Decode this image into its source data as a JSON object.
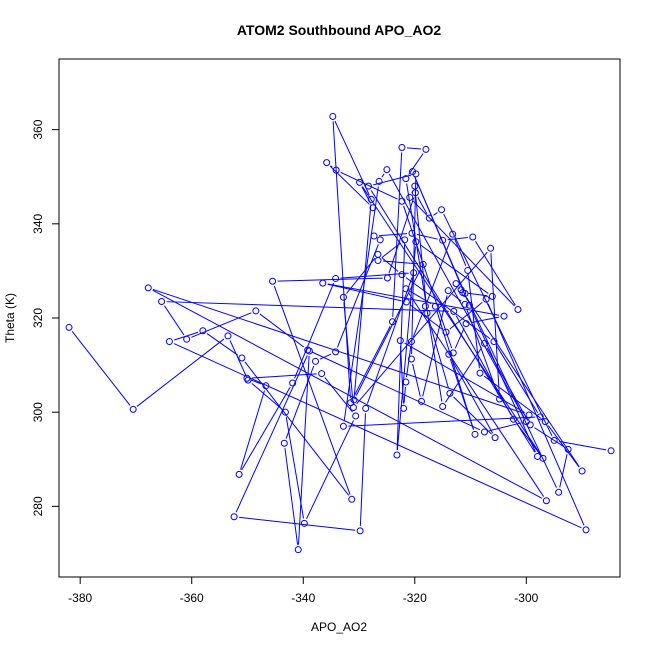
{
  "chart_data": {
    "type": "scatter",
    "title": "ATOM2 Southbound APO_AO2",
    "xlabel": "APO_AO2",
    "ylabel": "Theta (K)",
    "xlim": [
      -383.8,
      -283.2
    ],
    "ylim": [
      265.0,
      375.0
    ],
    "xticks": [
      -380,
      -360,
      -340,
      -320,
      -300
    ],
    "yticks": [
      280,
      300,
      320,
      340,
      360
    ],
    "grid": false,
    "color": "#0000ff",
    "line_mode": "points-connected",
    "series": [
      {
        "points": [
          [
            -382,
            318
          ],
          [
            -370.5,
            300.6
          ],
          [
            -353.5,
            316.2
          ],
          [
            -349.9,
            306.8
          ],
          [
            -343.2,
            300.0
          ],
          [
            -339.8,
            276.4
          ],
          [
            -330.6,
            299.2
          ],
          [
            -336.7,
            308.2
          ],
          [
            -350.1,
            307.2
          ],
          [
            -346.7,
            305.6
          ],
          [
            -351.5,
            286.8
          ],
          [
            -341.9,
            306.2
          ],
          [
            -334.2,
            328.4
          ],
          [
            -320.2,
            329.6
          ],
          [
            -328.8,
            300.8
          ],
          [
            -329.8,
            274.8
          ],
          [
            -352.4,
            277.8
          ],
          [
            -338.9,
            313.0
          ],
          [
            -340.9,
            270.8
          ],
          [
            -343.4,
            293.4
          ],
          [
            -337.8,
            310.8
          ],
          [
            -334.2,
            312.8
          ],
          [
            -326.2,
            336.6
          ],
          [
            -327.3,
            337.4
          ],
          [
            -320.5,
            338.0
          ],
          [
            -315.0,
            336.5
          ],
          [
            -309.6,
            337.2
          ],
          [
            -301.5,
            321.8
          ],
          [
            -320.9,
            345.6
          ],
          [
            -320.0,
            348.0
          ],
          [
            -317.8,
            321.0
          ],
          [
            -313.7,
            304.0
          ],
          [
            -305.6,
            294.6
          ],
          [
            -313.9,
            312.3
          ],
          [
            -309.2,
            295.3
          ],
          [
            -316.3,
            322.5
          ],
          [
            -321.6,
            326.2
          ],
          [
            -296.4,
            281.2
          ],
          [
            -367.8,
            326.4
          ],
          [
            -299.5,
            299.4
          ],
          [
            -322.6,
            315.2
          ],
          [
            -322.0,
            300.8
          ],
          [
            -321.6,
            306.4
          ],
          [
            -320.6,
            315.0
          ],
          [
            -318.1,
            322.5
          ],
          [
            -313.2,
            337.8
          ],
          [
            -310.5,
            330.1
          ],
          [
            -308.3,
            308.3
          ],
          [
            -296.6,
            298.0
          ],
          [
            -290.0,
            287.5
          ],
          [
            -311.7,
            326.0
          ],
          [
            -312.6,
            327.3
          ],
          [
            -311.4,
            325.4
          ],
          [
            -306.1,
            324.6
          ],
          [
            -319.8,
            336.2
          ],
          [
            -323.2,
            290.9
          ],
          [
            -321.8,
            336.6
          ],
          [
            -326.6,
            332.2
          ],
          [
            -318.5,
            331.4
          ],
          [
            -330.9,
            302.6
          ],
          [
            -327.8,
            345.2
          ],
          [
            -334.7,
            362.8
          ],
          [
            -331.5,
            302.0
          ],
          [
            -324.0,
            319.2
          ],
          [
            -322.3,
            356.2
          ],
          [
            -318.0,
            355.8
          ],
          [
            -321.6,
            349.6
          ],
          [
            -315.0,
            301.2
          ],
          [
            -307.5,
            314.6
          ],
          [
            -299.3,
            297.3
          ],
          [
            -292.5,
            292.1
          ],
          [
            -294.2,
            283.0
          ],
          [
            -311.0,
            325.2
          ],
          [
            -320.4,
            351.1
          ],
          [
            -310.2,
            322.7
          ],
          [
            -298.0,
            290.6
          ],
          [
            -328.3,
            348.0
          ],
          [
            -319.8,
            350.6
          ],
          [
            -320.6,
            311.3
          ],
          [
            -318.8,
            302.3
          ],
          [
            -314.0,
            325.8
          ],
          [
            -311.0,
            322.9
          ],
          [
            -304.8,
            302.8
          ],
          [
            -306.4,
            334.8
          ],
          [
            -331.0,
            301.0
          ],
          [
            -332.8,
            324.4
          ],
          [
            -326.6,
            333.5
          ],
          [
            -322.3,
            329.2
          ],
          [
            -305.8,
            315.0
          ],
          [
            -297.5,
            299.0
          ],
          [
            -332.8,
            297.0
          ],
          [
            -326.4,
            349.0
          ],
          [
            -325.0,
            351.5
          ],
          [
            -300.0,
            298.0
          ],
          [
            -307.5,
            295.8
          ],
          [
            -339.2,
            313.2
          ],
          [
            -348.5,
            321.5
          ],
          [
            -360.9,
            315.5
          ],
          [
            -365.4,
            323.5
          ],
          [
            -313.0,
            321.4
          ],
          [
            -302.3,
            298.5
          ],
          [
            -297.0,
            290.2
          ],
          [
            -329.9,
            348.8
          ],
          [
            -327.5,
            343.4
          ],
          [
            -335.8,
            353.0
          ],
          [
            -334.1,
            351.4
          ],
          [
            -322.3,
            344.8
          ],
          [
            -313.1,
            312.6
          ],
          [
            -310.8,
            318.8
          ],
          [
            -304.0,
            320.4
          ],
          [
            -336.5,
            327.4
          ],
          [
            -321.5,
            323.4
          ],
          [
            -314.4,
            317.0
          ],
          [
            -307.2,
            324.0
          ],
          [
            -289.3,
            275.0
          ],
          [
            -364.0,
            315.0
          ],
          [
            -358.0,
            317.3
          ],
          [
            -351.0,
            311.5
          ],
          [
            -331.3,
            281.5
          ],
          [
            -345.5,
            327.8
          ],
          [
            -324.9,
            328.5
          ],
          [
            -319.9,
            346.6
          ],
          [
            -317.4,
            341.2
          ],
          [
            -315.2,
            343.0
          ],
          [
            -295.0,
            294.0
          ],
          [
            -284.8,
            291.8
          ]
        ]
      }
    ]
  }
}
